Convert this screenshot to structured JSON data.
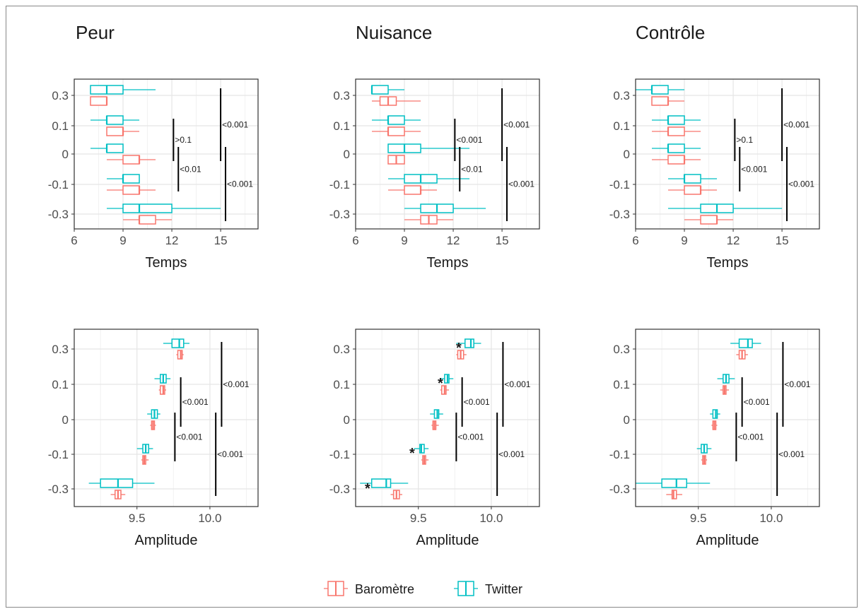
{
  "colors": {
    "barometre": "#F8766D",
    "twitter": "#00BFC4",
    "grid_major": "#E5E5E5",
    "grid_minor": "#F2F2F2",
    "panel_border": "#333333",
    "text": "#1a1a1a"
  },
  "legend": {
    "placement": "bottom-center",
    "items": [
      {
        "label": "Baromètre",
        "color_key": "barometre"
      },
      {
        "label": "Twitter",
        "color_key": "twitter"
      }
    ]
  },
  "chart_data": [
    {
      "type": "boxplot",
      "title": "Peur",
      "xlabel": "Temps",
      "categories": [
        "0.3",
        "0.1",
        "0",
        "-0.1",
        "-0.3"
      ],
      "xlim": [
        6,
        17.3
      ],
      "xticks": [
        6,
        9,
        12,
        15
      ],
      "series": [
        {
          "name": "Baromètre",
          "boxes": [
            [
              7,
              7,
              8,
              8,
              8
            ],
            [
              8,
              8,
              9,
              9,
              10
            ],
            [
              8,
              9,
              10,
              10,
              11
            ],
            [
              8,
              9,
              10,
              10,
              11
            ],
            [
              9,
              10,
              10,
              11,
              12
            ]
          ]
        },
        {
          "name": "Twitter",
          "boxes": [
            [
              7,
              7,
              8,
              9,
              11
            ],
            [
              7,
              8,
              8,
              9,
              10
            ],
            [
              7,
              8,
              8,
              9,
              9
            ],
            [
              8,
              9,
              9,
              10,
              10
            ],
            [
              8,
              9,
              10,
              12,
              15
            ]
          ]
        }
      ],
      "annotations": [
        {
          "text": "<0.001",
          "from": "0.3",
          "to": "0",
          "x": 15
        },
        {
          "text": ">0.1",
          "from": "0.1",
          "to": "0",
          "x": 12.1
        },
        {
          "text": "<0.01",
          "from": "0",
          "to": "-0.1",
          "x": 12.4
        },
        {
          "text": "<0.001",
          "from": "0",
          "to": "-0.3",
          "x": 15.3
        }
      ]
    },
    {
      "type": "boxplot",
      "title": "Nuisance",
      "xlabel": "Temps",
      "categories": [
        "0.3",
        "0.1",
        "0",
        "-0.1",
        "-0.3"
      ],
      "xlim": [
        6,
        17.3
      ],
      "xticks": [
        6,
        9,
        12,
        15
      ],
      "series": [
        {
          "name": "Baromètre",
          "boxes": [
            [
              7,
              7.5,
              8,
              8.5,
              10
            ],
            [
              7,
              8,
              8,
              9,
              10
            ],
            [
              8,
              8,
              8.5,
              9,
              9
            ],
            [
              8,
              9,
              10,
              10,
              11
            ],
            [
              9,
              10,
              10.5,
              11,
              12
            ]
          ]
        },
        {
          "name": "Twitter",
          "boxes": [
            [
              7,
              7,
              7,
              8,
              9
            ],
            [
              7,
              8,
              8,
              9,
              10
            ],
            [
              8,
              8,
              9,
              10,
              13
            ],
            [
              8,
              9,
              10,
              11,
              13
            ],
            [
              9,
              10,
              11,
              12,
              14
            ]
          ]
        }
      ],
      "annotations": [
        {
          "text": "<0.001",
          "from": "0.3",
          "to": "0",
          "x": 15
        },
        {
          "text": "<0.001",
          "from": "0.1",
          "to": "0",
          "x": 12.1
        },
        {
          "text": "<0.01",
          "from": "0",
          "to": "-0.1",
          "x": 12.4
        },
        {
          "text": "<0.001",
          "from": "0",
          "to": "-0.3",
          "x": 15.3
        }
      ]
    },
    {
      "type": "boxplot",
      "title": "Contrôle",
      "xlabel": "Temps",
      "categories": [
        "0.3",
        "0.1",
        "0",
        "-0.1",
        "-0.3"
      ],
      "xlim": [
        6,
        17.3
      ],
      "xticks": [
        6,
        9,
        12,
        15
      ],
      "series": [
        {
          "name": "Baromètre",
          "boxes": [
            [
              7,
              7,
              8,
              8,
              9
            ],
            [
              7,
              8,
              8,
              9,
              10
            ],
            [
              7,
              8,
              9,
              9,
              10
            ],
            [
              8,
              9,
              10,
              10,
              11
            ],
            [
              9,
              10,
              11,
              11,
              12
            ]
          ]
        },
        {
          "name": "Twitter",
          "boxes": [
            [
              6,
              7,
              7,
              8,
              9
            ],
            [
              7,
              8,
              8,
              9,
              10
            ],
            [
              7,
              8,
              8,
              9,
              10
            ],
            [
              8,
              9,
              9,
              10,
              11
            ],
            [
              8,
              10,
              11,
              12,
              15
            ]
          ]
        }
      ],
      "annotations": [
        {
          "text": "<0.001",
          "from": "0.3",
          "to": "0",
          "x": 15
        },
        {
          "text": ">0.1",
          "from": "0.1",
          "to": "0",
          "x": 12.1
        },
        {
          "text": "<0.001",
          "from": "0",
          "to": "-0.1",
          "x": 12.4
        },
        {
          "text": "<0.001",
          "from": "0",
          "to": "-0.3",
          "x": 15.3
        }
      ]
    },
    {
      "type": "boxplot",
      "title": "",
      "xlabel": "Amplitude",
      "categories": [
        "0.3",
        "0.1",
        "0",
        "-0.1",
        "-0.3"
      ],
      "xlim": [
        9.07,
        10.33
      ],
      "xticks": [
        9.5,
        10.0
      ],
      "xtick_labels": [
        "9.5",
        "10.0"
      ],
      "series": [
        {
          "name": "Baromètre",
          "boxes": [
            [
              9.77,
              9.78,
              9.8,
              9.81,
              9.82
            ],
            [
              9.65,
              9.66,
              9.68,
              9.69,
              9.7
            ],
            [
              9.59,
              9.6,
              9.61,
              9.62,
              9.63
            ],
            [
              9.53,
              9.54,
              9.55,
              9.56,
              9.58
            ],
            [
              9.32,
              9.35,
              9.37,
              9.39,
              9.42
            ]
          ]
        },
        {
          "name": "Twitter",
          "boxes": [
            [
              9.68,
              9.74,
              9.79,
              9.82,
              9.86
            ],
            [
              9.62,
              9.66,
              9.68,
              9.7,
              9.73
            ],
            [
              9.57,
              9.6,
              9.62,
              9.64,
              9.66
            ],
            [
              9.5,
              9.54,
              9.56,
              9.58,
              9.61
            ],
            [
              9.17,
              9.25,
              9.37,
              9.47,
              9.62
            ]
          ]
        }
      ],
      "annotations": [
        {
          "text": "<0.001",
          "from": "0.3",
          "to": "0",
          "x": 10.08
        },
        {
          "text": "<0.001",
          "from": "0.1",
          "to": "0",
          "x": 9.8
        },
        {
          "text": "<0.001",
          "from": "0",
          "to": "-0.1",
          "x": 9.76
        },
        {
          "text": "<0.001",
          "from": "0",
          "to": "-0.3",
          "x": 10.04
        }
      ]
    },
    {
      "type": "boxplot",
      "title": "",
      "xlabel": "Amplitude",
      "categories": [
        "0.3",
        "0.1",
        "0",
        "-0.1",
        "-0.3"
      ],
      "xlim": [
        9.07,
        10.33
      ],
      "xticks": [
        9.5,
        10.0
      ],
      "xtick_labels": [
        "9.5",
        "10.0"
      ],
      "series": [
        {
          "name": "Baromètre",
          "boxes": [
            [
              9.76,
              9.77,
              9.79,
              9.81,
              9.83
            ],
            [
              9.65,
              9.66,
              9.68,
              9.69,
              9.71
            ],
            [
              9.59,
              9.6,
              9.61,
              9.62,
              9.64
            ],
            [
              9.52,
              9.53,
              9.54,
              9.55,
              9.57
            ],
            [
              9.31,
              9.33,
              9.35,
              9.37,
              9.39
            ]
          ]
        },
        {
          "name": "Twitter",
          "boxes": [
            [
              9.76,
              9.82,
              9.86,
              9.88,
              9.93
            ],
            [
              9.65,
              9.68,
              9.7,
              9.71,
              9.74
            ],
            [
              9.58,
              9.61,
              9.63,
              9.64,
              9.67
            ],
            [
              9.47,
              9.51,
              9.52,
              9.54,
              9.57
            ],
            [
              9.1,
              9.18,
              9.28,
              9.31,
              9.43
            ]
          ]
        }
      ],
      "significance_marks": [
        {
          "text": "*",
          "category": "0.3"
        },
        {
          "text": "*",
          "category": "0.1"
        },
        {
          "text": "*",
          "category": "-0.1"
        },
        {
          "text": "*",
          "category": "-0.3"
        }
      ],
      "annotations": [
        {
          "text": "<0.001",
          "from": "0.3",
          "to": "0",
          "x": 10.08
        },
        {
          "text": "<0.001",
          "from": "0.1",
          "to": "0",
          "x": 9.8
        },
        {
          "text": "<0.001",
          "from": "0",
          "to": "-0.1",
          "x": 9.76
        },
        {
          "text": "<0.001",
          "from": "0",
          "to": "-0.3",
          "x": 10.04
        }
      ]
    },
    {
      "type": "boxplot",
      "title": "",
      "xlabel": "Amplitude",
      "categories": [
        "0.3",
        "0.1",
        "0",
        "-0.1",
        "-0.3"
      ],
      "xlim": [
        9.07,
        10.33
      ],
      "xticks": [
        9.5,
        10.0
      ],
      "xtick_labels": [
        "9.5",
        "10.0"
      ],
      "series": [
        {
          "name": "Baromètre",
          "boxes": [
            [
              9.76,
              9.78,
              9.8,
              9.82,
              9.84
            ],
            [
              9.65,
              9.67,
              9.68,
              9.69,
              9.71
            ],
            [
              9.59,
              9.6,
              9.61,
              9.62,
              9.63
            ],
            [
              9.52,
              9.53,
              9.54,
              9.55,
              9.56
            ],
            [
              9.28,
              9.32,
              9.33,
              9.35,
              9.39
            ]
          ]
        },
        {
          "name": "Twitter",
          "boxes": [
            [
              9.72,
              9.78,
              9.84,
              9.87,
              9.93
            ],
            [
              9.63,
              9.67,
              9.69,
              9.71,
              9.75
            ],
            [
              9.58,
              9.6,
              9.62,
              9.63,
              9.65
            ],
            [
              9.49,
              9.52,
              9.54,
              9.56,
              9.59
            ],
            [
              9.07,
              9.25,
              9.35,
              9.42,
              9.58
            ]
          ]
        }
      ],
      "annotations": [
        {
          "text": "<0.001",
          "from": "0.3",
          "to": "0",
          "x": 10.08
        },
        {
          "text": "<0.001",
          "from": "0.1",
          "to": "0",
          "x": 9.8
        },
        {
          "text": "<0.001",
          "from": "0",
          "to": "-0.1",
          "x": 9.76
        },
        {
          "text": "<0.001",
          "from": "0",
          "to": "-0.3",
          "x": 10.04
        }
      ]
    }
  ]
}
